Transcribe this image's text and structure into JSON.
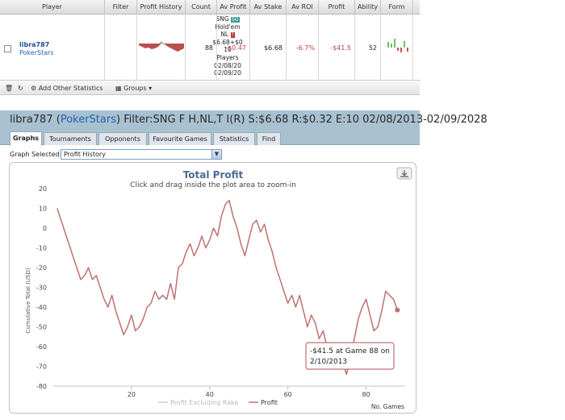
{
  "table": {
    "headers": [
      "Player",
      "Filter",
      "Profit History",
      "Count",
      "Av Profit",
      "Av Stake",
      "Av ROI",
      "Profit",
      "Ability",
      "Form"
    ],
    "row": {
      "player_name": "libra787",
      "site": "PokerStars",
      "filter_lines": [
        "SNG",
        "Hold'em",
        "NL",
        "$6.68+$0",
        "10",
        "Players",
        "02/08/20",
        "02/09/20"
      ],
      "sng_badge": "SG",
      "count": "88",
      "av_profit": "-$0.47",
      "av_stake": "$6.68",
      "av_roi": "-6.7%",
      "profit": "-$41.5",
      "ability": "52"
    },
    "colors": {
      "negative": "#c04040",
      "link": "#1f4f9a"
    }
  },
  "toolbar": {
    "add_stats_label": "Add Other Statistics",
    "groups_label": "Groups"
  },
  "panel": {
    "title_prefix": "libra787 (",
    "title_site": "PokerStars",
    "title_suffix": ") Filter:SNG F H,NL,T I(R) S:$6.68 R:$0.32 E:10 02/08/2013-02/09/2028",
    "tabs": [
      "Graphs",
      "Tournaments",
      "Opponents",
      "Favourite Games",
      "Statistics",
      "Find"
    ],
    "active_tab": "Graphs",
    "graph_selected_label": "Graph Selected:",
    "graph_selected_value": "Profit History"
  },
  "chart_data": {
    "type": "line",
    "title": "Total Profit",
    "subtitle": "Click and drag inside the plot area to zoom-in",
    "ylabel": "Cumulative Total (USD)",
    "xlabel": "No. Games",
    "xlim": [
      0,
      90
    ],
    "ylim": [
      -80,
      20
    ],
    "xticks": [
      20,
      40,
      60,
      80
    ],
    "yticks": [
      20,
      10,
      0,
      -10,
      -20,
      -30,
      -40,
      -50,
      -60,
      -70,
      -80
    ],
    "grid": false,
    "legend_position": "bottom",
    "series": [
      {
        "name": "Profit Excluding Rake",
        "color": "#cccccc",
        "values": []
      },
      {
        "name": "Profit",
        "color": "#c07070",
        "x": [
          1,
          2,
          3,
          4,
          5,
          6,
          7,
          8,
          9,
          10,
          11,
          12,
          13,
          14,
          15,
          16,
          17,
          18,
          19,
          20,
          21,
          22,
          23,
          24,
          25,
          26,
          27,
          28,
          29,
          30,
          31,
          32,
          33,
          34,
          35,
          36,
          37,
          38,
          39,
          40,
          41,
          42,
          43,
          44,
          45,
          46,
          47,
          48,
          49,
          50,
          51,
          52,
          53,
          54,
          55,
          56,
          57,
          58,
          59,
          60,
          61,
          62,
          63,
          64,
          65,
          66,
          67,
          68,
          69,
          70,
          71,
          72,
          73,
          74,
          75,
          76,
          77,
          78,
          79,
          80,
          81,
          82,
          83,
          84,
          85,
          86,
          87,
          88
        ],
        "values": [
          10,
          4,
          -2,
          -8,
          -14,
          -20,
          -26,
          -24,
          -20,
          -26,
          -24,
          -30,
          -36,
          -40,
          -34,
          -42,
          -48,
          -54,
          -50,
          -44,
          -52,
          -50,
          -46,
          -40,
          -38,
          -32,
          -36,
          -34,
          -36,
          -28,
          -36,
          -20,
          -18,
          -12,
          -8,
          -14,
          -10,
          -4,
          -10,
          -6,
          0,
          -4,
          6,
          12,
          14,
          6,
          0,
          -8,
          -14,
          -6,
          2,
          4,
          -2,
          2,
          -6,
          -12,
          -20,
          -26,
          -32,
          -38,
          -34,
          -40,
          -34,
          -42,
          -50,
          -44,
          -48,
          -56,
          -52,
          -60,
          -58,
          -66,
          -62,
          -68,
          -74,
          -66,
          -56,
          -46,
          -40,
          -36,
          -44,
          -52,
          -50,
          -42,
          -32,
          -34,
          -36,
          -41.5
        ]
      }
    ],
    "tooltip": {
      "line1": "-$41.5 at Game 88 on",
      "line2": "2/10/2013"
    }
  }
}
